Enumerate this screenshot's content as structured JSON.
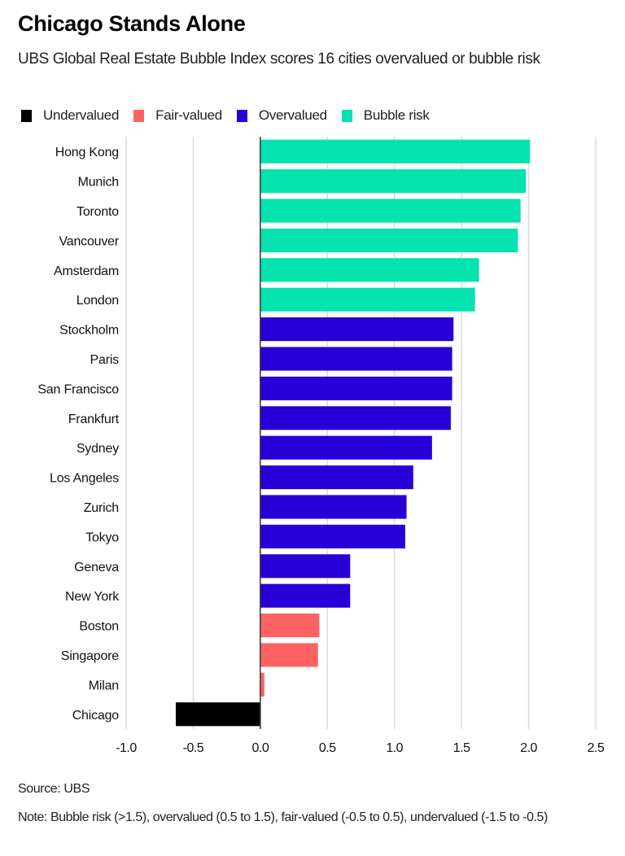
{
  "chart_data": {
    "type": "bar",
    "orientation": "horizontal",
    "title": "Chicago Stands Alone",
    "subtitle": "UBS Global Real Estate Bubble Index scores 16 cities overvalued or bubble risk",
    "xlabel": "",
    "ylabel": "",
    "xlim": [
      -1.0,
      2.5
    ],
    "xticks": [
      "-1.0",
      "-0.5",
      "0.0",
      "0.5",
      "1.0",
      "1.5",
      "2.0",
      "2.5"
    ],
    "grid": true,
    "legend_position": "top-left",
    "legend": [
      {
        "name": "Undervalued",
        "color": "#000000"
      },
      {
        "name": "Fair-valued",
        "color": "#ff6262"
      },
      {
        "name": "Overvalued",
        "color": "#2800d7"
      },
      {
        "name": "Bubble risk",
        "color": "#04e2b0"
      }
    ],
    "categories": [
      "Hong Kong",
      "Munich",
      "Toronto",
      "Vancouver",
      "Amsterdam",
      "London",
      "Stockholm",
      "Paris",
      "San Francisco",
      "Frankfurt",
      "Sydney",
      "Los Angeles",
      "Zurich",
      "Tokyo",
      "Geneva",
      "New York",
      "Boston",
      "Singapore",
      "Milan",
      "Chicago"
    ],
    "values": [
      2.01,
      1.98,
      1.94,
      1.92,
      1.63,
      1.6,
      1.44,
      1.43,
      1.43,
      1.42,
      1.28,
      1.14,
      1.09,
      1.08,
      0.67,
      0.67,
      0.44,
      0.43,
      0.03,
      -0.63
    ],
    "classes": [
      "Bubble risk",
      "Bubble risk",
      "Bubble risk",
      "Bubble risk",
      "Bubble risk",
      "Bubble risk",
      "Overvalued",
      "Overvalued",
      "Overvalued",
      "Overvalued",
      "Overvalued",
      "Overvalued",
      "Overvalued",
      "Overvalued",
      "Overvalued",
      "Overvalued",
      "Fair-valued",
      "Fair-valued",
      "Fair-valued",
      "Undervalued"
    ]
  },
  "footer": {
    "source": "Source: UBS",
    "note": "Note: Bubble risk (>1.5), overvalued (0.5 to 1.5), fair-valued (-0.5 to 0.5), undervalued (-1.5 to -0.5)"
  }
}
